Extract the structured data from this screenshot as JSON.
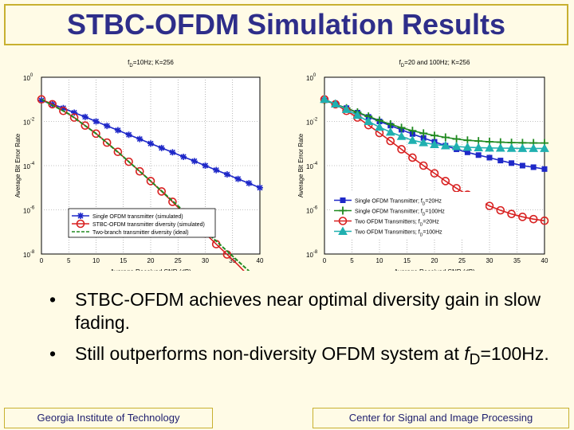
{
  "title": "STBC-OFDM Simulation Results",
  "bullets": [
    {
      "dot": "•",
      "text": "STBC-OFDM achieves near optimal diversity gain in slow fading."
    },
    {
      "dot": "•",
      "text_before": "Still outperforms non-diversity OFDM system at ",
      "italic": "f",
      "sub": "D",
      "text_after": "=100Hz."
    }
  ],
  "footer": {
    "left": "Georgia Institute of Technology",
    "right": "Center for Signal and Image Processing"
  },
  "chart_data": [
    {
      "type": "line",
      "title_main": "f",
      "title_sub": "D",
      "title_rest": "=10Hz; K=256",
      "xlabel": "Average Received SNR (dB)",
      "ylabel": "Average Bit Error Rate",
      "xlim": [
        0,
        40
      ],
      "ylim_exp": [
        -8,
        0
      ],
      "xticks": [
        "0",
        "5",
        "10",
        "15",
        "20",
        "25",
        "30",
        "35",
        "40"
      ],
      "yticks": [
        {
          "base": "10",
          "exp": "0"
        },
        {
          "base": "10",
          "exp": "-2"
        },
        {
          "base": "10",
          "exp": "-4"
        },
        {
          "base": "10",
          "exp": "-6"
        },
        {
          "base": "10",
          "exp": "-8"
        }
      ],
      "legend_position": "bottom-left",
      "series": [
        {
          "name": "Single OFDM transmitter (simulated)",
          "color": "#1e28c8",
          "marker": "star",
          "x": [
            0,
            2,
            4,
            6,
            8,
            10,
            12,
            14,
            16,
            18,
            20,
            22,
            24,
            26,
            28,
            30,
            32,
            34,
            36,
            38,
            40
          ],
          "y": [
            0.09,
            0.06,
            0.04,
            0.025,
            0.016,
            0.01,
            0.0063,
            0.004,
            0.0025,
            0.0016,
            0.001,
            0.00063,
            0.0004,
            0.00025,
            0.00016,
            0.0001,
            6.3e-05,
            4e-05,
            2.5e-05,
            1.6e-05,
            1e-05
          ]
        },
        {
          "name": "STBC-OFDM transmitter diversity (simulated)",
          "color": "#d82020",
          "marker": "circle",
          "x": [
            0,
            2,
            4,
            6,
            8,
            10,
            12,
            14,
            16,
            18,
            20,
            22,
            24,
            26,
            28,
            30,
            32,
            34,
            36,
            38
          ],
          "y": [
            0.1,
            0.06,
            0.03,
            0.015,
            0.0065,
            0.0028,
            0.0011,
            0.00042,
            0.00015,
            5.5e-05,
            2e-05,
            6.8e-06,
            2.3e-06,
            7.5e-07,
            2.5e-07,
            8.5e-08,
            2.8e-08,
            9.5e-09,
            3.2e-09,
            1e-09
          ]
        },
        {
          "name": "Two-branch transmitter diversity (ideal)",
          "color": "#208a20",
          "marker": "none",
          "dashed": true,
          "x": [
            0,
            5,
            10,
            15,
            20,
            25,
            30,
            35,
            40
          ],
          "y": [
            0.1,
            0.022,
            0.0028,
            0.00025,
            2e-05,
            1.5e-06,
            1.1e-07,
            8e-09,
            6e-10
          ]
        }
      ]
    },
    {
      "type": "line",
      "title_main": "f",
      "title_sub": "D",
      "title_rest": "=20 and 100Hz; K=256",
      "xlabel": "Average Received SNR (dB)",
      "ylabel": "Average Bit Error Rate",
      "xlim": [
        0,
        40
      ],
      "ylim_exp": [
        -8,
        0
      ],
      "xticks": [
        "0",
        "5",
        "10",
        "15",
        "20",
        "25",
        "30",
        "35",
        "40"
      ],
      "yticks": [
        {
          "base": "10",
          "exp": "0"
        },
        {
          "base": "10",
          "exp": "-2"
        },
        {
          "base": "10",
          "exp": "-4"
        },
        {
          "base": "10",
          "exp": "-6"
        },
        {
          "base": "10",
          "exp": "-8"
        }
      ],
      "legend_position": "bottom-right",
      "series": [
        {
          "name": "Single OFDM Transmitter; f",
          "name_sub": "D",
          "name_rest": "=20Hz",
          "color": "#1e28c8",
          "marker": "square",
          "x": [
            0,
            2,
            4,
            6,
            8,
            10,
            12,
            14,
            16,
            18,
            20,
            22,
            24,
            26,
            28,
            30,
            32,
            34,
            36,
            38,
            40
          ],
          "y": [
            0.09,
            0.06,
            0.04,
            0.025,
            0.016,
            0.01,
            0.0065,
            0.0042,
            0.0027,
            0.0018,
            0.0012,
            0.0008,
            0.00055,
            0.0004,
            0.0003,
            0.00023,
            0.00017,
            0.00013,
            0.0001,
            8.5e-05,
            7e-05
          ]
        },
        {
          "name": "Single OFDM Transmitter; f",
          "name_sub": "D",
          "name_rest": "=100Hz",
          "color": "#208a20",
          "marker": "plus",
          "x": [
            0,
            2,
            4,
            6,
            8,
            10,
            12,
            14,
            16,
            18,
            20,
            22,
            24,
            26,
            28,
            30,
            32,
            34,
            36,
            38,
            40
          ],
          "y": [
            0.09,
            0.06,
            0.04,
            0.026,
            0.017,
            0.011,
            0.0075,
            0.0052,
            0.0038,
            0.0029,
            0.0023,
            0.0019,
            0.0016,
            0.0014,
            0.0013,
            0.0012,
            0.00115,
            0.0011,
            0.00108,
            0.00106,
            0.00105
          ]
        },
        {
          "name": "Two OFDM Transmitters; f",
          "name_sub": "D",
          "name_rest": "=20Hz",
          "color": "#d82020",
          "marker": "circle",
          "x": [
            0,
            2,
            4,
            6,
            8,
            10,
            12,
            14,
            16,
            18,
            20,
            22,
            24,
            26,
            28,
            30,
            32,
            34,
            36,
            38,
            40
          ],
          "y": [
            0.1,
            0.06,
            0.03,
            0.015,
            0.0068,
            0.003,
            0.0013,
            0.00055,
            0.00023,
            0.0001,
            4.5e-05,
            2e-05,
            9.5e-06,
            4.8e-06,
            2.6e-06,
            1.5e-06,
            9.5e-07,
            6.5e-07,
            4.8e-07,
            3.8e-07,
            3.2e-07
          ]
        },
        {
          "name": "Two OFDM Transmitters; f",
          "name_sub": "D",
          "name_rest": "=100Hz",
          "color": "#20b0b0",
          "marker": "triangle",
          "x": [
            0,
            2,
            4,
            6,
            8,
            10,
            12,
            14,
            16,
            18,
            20,
            22,
            24,
            26,
            28,
            30,
            32,
            34,
            36,
            38,
            40
          ],
          "y": [
            0.1,
            0.062,
            0.035,
            0.019,
            0.01,
            0.0055,
            0.0033,
            0.0021,
            0.0014,
            0.0011,
            0.0009,
            0.0008,
            0.00073,
            0.00068,
            0.00065,
            0.00063,
            0.00062,
            0.00061,
            0.0006,
            0.0006,
            0.0006
          ]
        }
      ]
    }
  ]
}
